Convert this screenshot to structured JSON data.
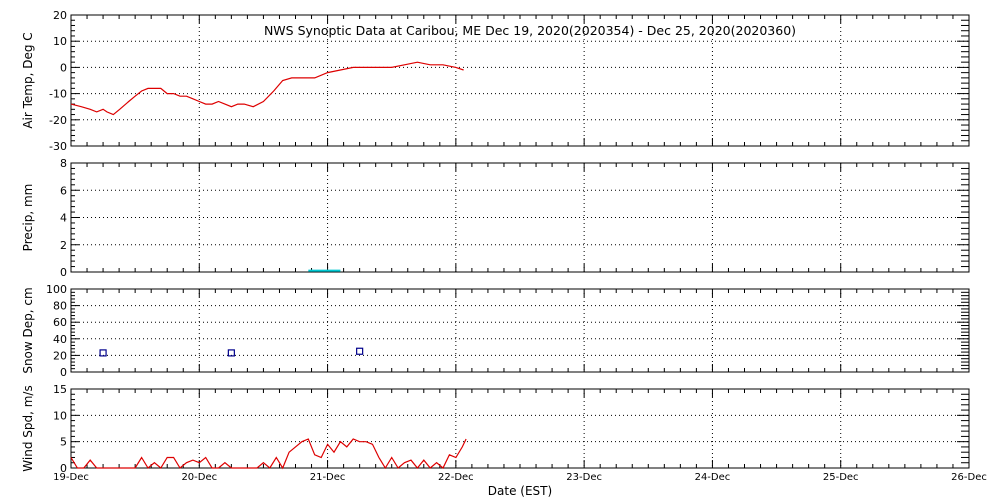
{
  "title": "NWS Synoptic Data at Caribou, ME    Dec 19, 2020(2020354) - Dec 25, 2020(2020360)",
  "xlabel": "Date (EST)",
  "x_ticks": [
    "19-Dec",
    "20-Dec",
    "21-Dec",
    "22-Dec",
    "23-Dec",
    "24-Dec",
    "25-Dec",
    "26-Dec"
  ],
  "colors": {
    "temp": "#dd0000",
    "precip": "#00c8d2",
    "snow": "#00008c",
    "wind": "#dd0000",
    "grid": "#000000"
  },
  "chart_data": [
    {
      "type": "line",
      "ylabel": "Air Temp, Deg C",
      "xlim": [
        0,
        7
      ],
      "ylim": [
        -30,
        20
      ],
      "y_ticks": [
        "-30",
        "-20",
        "-10",
        "0",
        "10",
        "20"
      ],
      "series": [
        {
          "x": [
            0,
            0.08,
            0.15,
            0.2,
            0.25,
            0.28,
            0.33,
            0.38,
            0.45,
            0.5,
            0.55,
            0.6,
            0.65,
            0.7,
            0.75,
            0.8,
            0.85,
            0.9,
            0.95,
            1.0,
            1.05,
            1.1,
            1.15,
            1.2,
            1.25,
            1.3,
            1.35,
            1.42,
            1.5,
            1.58,
            1.65,
            1.72,
            1.8,
            1.9,
            2.0,
            2.1,
            2.2,
            2.3,
            2.4,
            2.5,
            2.6,
            2.7,
            2.8,
            2.9,
            3.0,
            3.06
          ],
          "y": [
            -14,
            -15,
            -16,
            -17,
            -16,
            -17,
            -18,
            -16,
            -13,
            -11,
            -9,
            -8,
            -8,
            -8,
            -10,
            -10,
            -11,
            -11,
            -12,
            -13,
            -14,
            -14,
            -13,
            -14,
            -15,
            -14,
            -14,
            -15,
            -13,
            -9,
            -5,
            -4,
            -4,
            -4,
            -2,
            -1,
            0,
            0,
            0,
            0,
            1,
            2,
            1,
            1,
            0,
            -1
          ]
        }
      ]
    },
    {
      "type": "bar",
      "ylabel": "Precip, mm",
      "xlim": [
        0,
        7
      ],
      "ylim": [
        0,
        8
      ],
      "y_ticks": [
        "0",
        "2",
        "4",
        "6",
        "8"
      ],
      "series": [
        {
          "x_start": [
            1.85
          ],
          "x_end": [
            2.1
          ],
          "values": [
            0.1
          ]
        }
      ]
    },
    {
      "type": "scatter",
      "ylabel": "Snow Dep, cm",
      "xlim": [
        0,
        7
      ],
      "ylim": [
        0,
        100
      ],
      "y_ticks": [
        "0",
        "20",
        "40",
        "60",
        "80",
        "100"
      ],
      "series": [
        {
          "x": [
            0.25,
            1.25,
            2.25
          ],
          "y": [
            23,
            23,
            25
          ]
        }
      ]
    },
    {
      "type": "line",
      "ylabel": "Wind Spd, m/s",
      "xlim": [
        0,
        7
      ],
      "ylim": [
        0,
        15
      ],
      "y_ticks": [
        "0",
        "5",
        "10",
        "15"
      ],
      "series": [
        {
          "x": [
            0,
            0.05,
            0.1,
            0.15,
            0.2,
            0.25,
            0.3,
            0.35,
            0.4,
            0.45,
            0.5,
            0.55,
            0.6,
            0.65,
            0.7,
            0.75,
            0.8,
            0.85,
            0.9,
            0.95,
            1.0,
            1.05,
            1.1,
            1.15,
            1.2,
            1.25,
            1.3,
            1.35,
            1.4,
            1.45,
            1.5,
            1.55,
            1.6,
            1.65,
            1.7,
            1.75,
            1.8,
            1.85,
            1.9,
            1.95,
            2.0,
            2.05,
            2.1,
            2.15,
            2.2,
            2.25,
            2.3,
            2.35,
            2.4,
            2.45,
            2.5,
            2.55,
            2.6,
            2.65,
            2.7,
            2.75,
            2.8,
            2.85,
            2.9,
            2.95,
            3.0,
            3.05,
            3.08
          ],
          "y": [
            2,
            0,
            0,
            1.5,
            0,
            0,
            0,
            0,
            0,
            0,
            0,
            2,
            0,
            1,
            0,
            2,
            2,
            0,
            1,
            1.5,
            1,
            2,
            0,
            0,
            1,
            0,
            0,
            0,
            0,
            0,
            1,
            0,
            2,
            0,
            3,
            4,
            5,
            5.5,
            2.5,
            2,
            4.5,
            3,
            5,
            4,
            5.5,
            5,
            5,
            4.5,
            2,
            0,
            2,
            0,
            1,
            1.5,
            0,
            1.5,
            0,
            1,
            0,
            2.5,
            2,
            4,
            5.5
          ]
        }
      ]
    }
  ]
}
